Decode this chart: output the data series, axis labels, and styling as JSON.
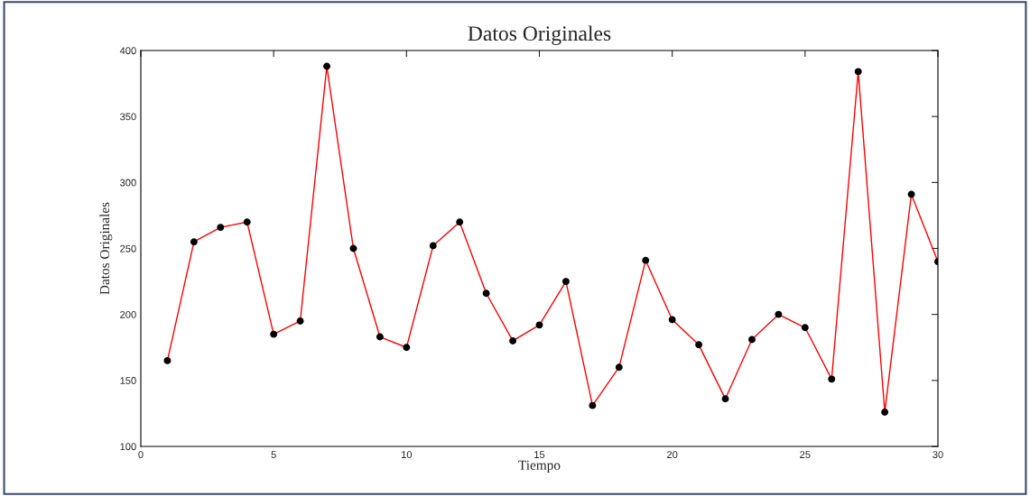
{
  "chart_data": {
    "type": "line",
    "title": "Datos Originales",
    "xlabel": "Tiempo",
    "ylabel": "Datos Originales",
    "x": [
      1,
      2,
      3,
      4,
      5,
      6,
      7,
      8,
      9,
      10,
      11,
      12,
      13,
      14,
      15,
      16,
      17,
      18,
      19,
      20,
      21,
      22,
      23,
      24,
      25,
      26,
      27,
      28,
      29,
      30
    ],
    "series": [
      {
        "color": "#ff0000",
        "values": [
          165,
          255,
          266,
          270,
          185,
          195,
          388,
          250,
          183,
          175,
          252,
          270,
          216,
          180,
          192,
          225,
          131,
          160,
          241,
          196,
          177,
          136,
          181,
          200,
          190,
          151,
          384,
          126,
          291,
          240
        ]
      }
    ],
    "xlim": [
      0,
      30
    ],
    "xticks": [
      0,
      5,
      10,
      15,
      20,
      25,
      30
    ],
    "ylim": [
      100,
      400
    ],
    "yticks": [
      100,
      150,
      200,
      250,
      300,
      350,
      400
    ],
    "marker": "circle",
    "line_style": "solid"
  }
}
